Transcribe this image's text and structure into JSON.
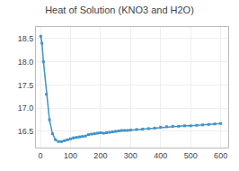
{
  "chart_data": {
    "type": "line",
    "title": "Heat of Solution (KNO3 and H2O)",
    "x": [
      1,
      5,
      10,
      20,
      30,
      40,
      50,
      60,
      70,
      80,
      90,
      100,
      110,
      120,
      130,
      140,
      150,
      160,
      170,
      180,
      190,
      200,
      210,
      220,
      230,
      240,
      250,
      260,
      270,
      280,
      290,
      300,
      320,
      340,
      360,
      380,
      400,
      420,
      440,
      460,
      480,
      500,
      520,
      540,
      560,
      580,
      600
    ],
    "values": [
      18.55,
      18.4,
      18.0,
      17.3,
      16.75,
      16.45,
      16.32,
      16.28,
      16.28,
      16.3,
      16.32,
      16.34,
      16.36,
      16.37,
      16.38,
      16.39,
      16.4,
      16.43,
      16.44,
      16.45,
      16.46,
      16.47,
      16.46,
      16.47,
      16.48,
      16.49,
      16.5,
      16.51,
      16.52,
      16.52,
      16.52,
      16.53,
      16.54,
      16.55,
      16.56,
      16.57,
      16.59,
      16.6,
      16.61,
      16.61,
      16.62,
      16.62,
      16.63,
      16.64,
      16.65,
      16.66,
      16.67
    ],
    "color": "#4393c8",
    "marker": "square",
    "xlim": [
      -15,
      625
    ],
    "ylim": [
      16.15,
      18.75
    ],
    "xticks": [
      0,
      100,
      200,
      300,
      400,
      500,
      600
    ],
    "yticks": [
      16.5,
      {
        "value": 17.0,
        "label": "17.0"
      },
      17.5,
      {
        "value": 18.0,
        "label": "18.0"
      },
      18.5
    ],
    "grid": true
  }
}
